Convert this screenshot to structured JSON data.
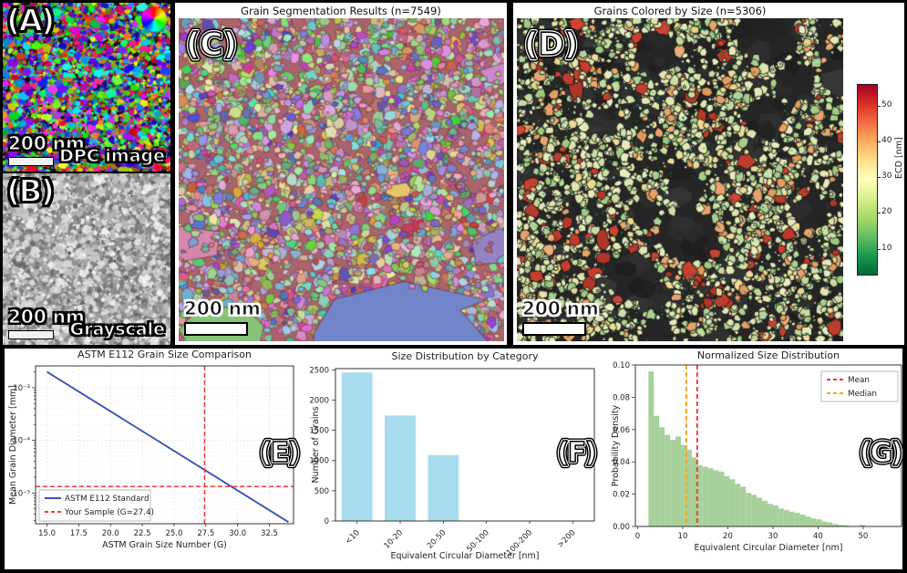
{
  "panels": {
    "a": {
      "label": "(A)",
      "scale_bar": "200 nm",
      "caption": "DPC image",
      "icon": "hue-colorwheel-icon"
    },
    "b": {
      "label": "(B)",
      "scale_bar": "200 nm",
      "caption": "Grayscale"
    },
    "c": {
      "label": "(C)",
      "title": "Grain Segmentation Results (n=7549)",
      "scale_bar": "200 nm"
    },
    "d": {
      "label": "(D)",
      "title": "Grains Colored by Size (n=5306)",
      "scale_bar": "200 nm",
      "colorbar": {
        "label": "ECD [nm]",
        "ticks": [
          10,
          20,
          30,
          40,
          50
        ],
        "vmin": 3,
        "vmax": 56,
        "colors": [
          "#006837",
          "#1a9850",
          "#66bd63",
          "#a6d96a",
          "#d9ef8b",
          "#ffffbf",
          "#fee08b",
          "#fdae61",
          "#f46d43",
          "#d73027",
          "#a50026"
        ]
      }
    }
  },
  "chart_data": [
    {
      "id": "astm",
      "type": "line",
      "panel_label": "(E)",
      "title": "ASTM E112 Grain Size Comparison",
      "xlabel": "ASTM Grain Size Number (G)",
      "ylabel": "Mean Grain Diameter [mm]",
      "x_ticks": [
        15.0,
        17.5,
        20.0,
        22.5,
        25.0,
        27.5,
        30.0,
        32.5
      ],
      "xlim": [
        14.1,
        34.4
      ],
      "y_scale": "log",
      "y_ticks": [
        0.001,
        0.0001,
        1e-05
      ],
      "y_tick_labels": [
        "10⁻³",
        "10⁻⁴",
        "10⁻⁵"
      ],
      "ylim": [
        2.6e-06,
        0.0026
      ],
      "line": {
        "name": "ASTM E112 Standard",
        "color": "#3c52b8",
        "x": [
          15,
          34
        ],
        "y": [
          0.002,
          2.8e-06
        ]
      },
      "sample": {
        "name": "Your Sample (G=27.4)",
        "color": "#ee3c2d",
        "G": 27.4,
        "d_mm": 1.32e-05
      },
      "legend": [
        "ASTM E112 Standard",
        "Your Sample (G=27.4)"
      ],
      "grid": true,
      "legend_position": "lower left"
    },
    {
      "id": "category",
      "type": "bar",
      "panel_label": "(F)",
      "title": "Size Distribution by Category",
      "xlabel": "Equivalent Circular Diameter [nm]",
      "ylabel": "Number of Grains",
      "categories": [
        "<10",
        "10-20",
        "20-50",
        "50-100",
        "100-200",
        ">200"
      ],
      "values": [
        2455,
        1745,
        1090,
        0,
        0,
        0
      ],
      "bar_color": "#a9dbee",
      "y_ticks": [
        0,
        500,
        1000,
        1500,
        2000,
        2500
      ],
      "ylim": [
        0,
        2520
      ]
    },
    {
      "id": "histogram",
      "type": "histogram",
      "panel_label": "(G)",
      "title": "Normalized Size Distribution",
      "xlabel": "Equivalent Circular Diameter [nm]",
      "ylabel": "Probability Density",
      "bin_start": 2.4,
      "bin_width": 1.2,
      "densities": [
        0.096,
        0.0685,
        0.0615,
        0.0567,
        0.0535,
        0.0557,
        0.0505,
        0.0475,
        0.0427,
        0.0381,
        0.037,
        0.036,
        0.0348,
        0.034,
        0.0312,
        0.0292,
        0.0264,
        0.0246,
        0.0208,
        0.0196,
        0.0178,
        0.0159,
        0.014,
        0.0131,
        0.0111,
        0.0102,
        0.0092,
        0.0085,
        0.0074,
        0.0061,
        0.005,
        0.0044,
        0.0031,
        0.0025,
        0.0015,
        0.001,
        0.0008,
        0,
        0,
        0.001
      ],
      "bar_color": "#a7d09a",
      "mean": {
        "label": "Mean",
        "value": 13.2,
        "color": "#e8432e"
      },
      "median": {
        "label": "Median",
        "value": 10.8,
        "color": "#f6a41f"
      },
      "x_ticks": [
        0,
        10,
        20,
        30,
        40,
        50
      ],
      "xlim": [
        -0.5,
        58.5
      ],
      "y_ticks": [
        "0.00",
        "0.02",
        "0.04",
        "0.06",
        "0.08",
        "0.10"
      ],
      "ylim": [
        0,
        0.1
      ],
      "legend": [
        "Mean",
        "Median"
      ],
      "legend_position": "upper right"
    }
  ]
}
